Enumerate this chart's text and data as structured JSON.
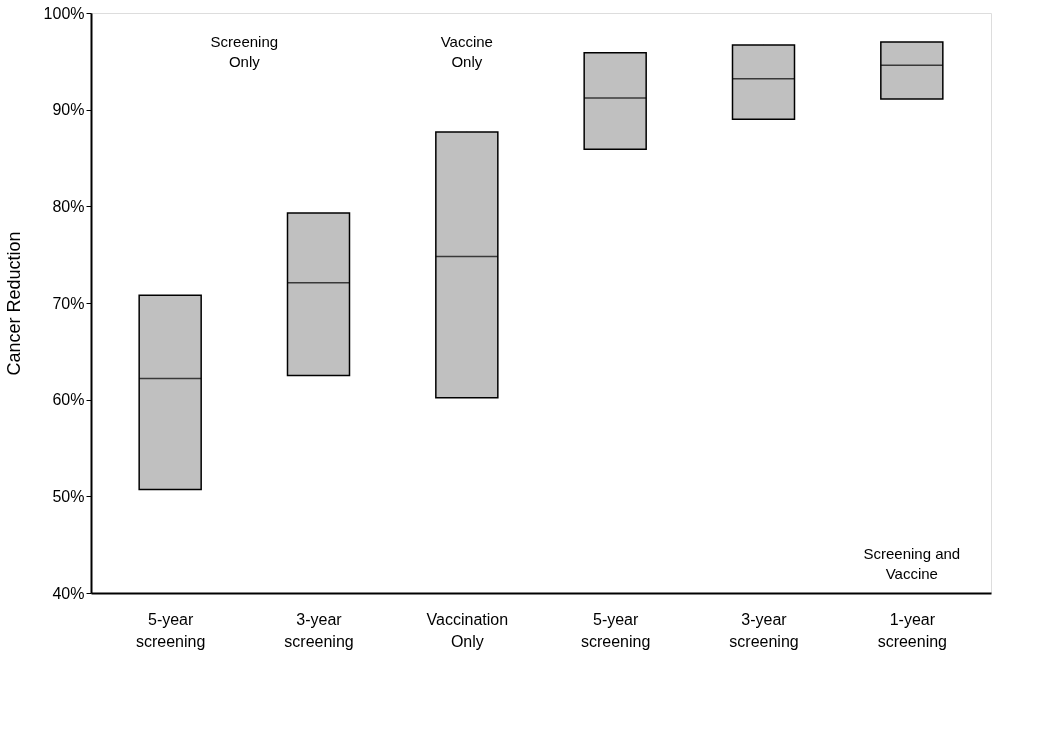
{
  "chart_data": {
    "type": "box",
    "ylabel": "Cancer Reduction",
    "categories": [
      "5-year screening",
      "3-year screening",
      "Vaccination Only",
      "5-year screening",
      "3-year screening",
      "1-year screening"
    ],
    "boxes": [
      {
        "low": 50.7,
        "q1": 50.7,
        "median": 62.2,
        "q3": 70.8,
        "high": 70.8
      },
      {
        "low": 62.5,
        "q1": 62.5,
        "median": 72.1,
        "q3": 79.3,
        "high": 79.3
      },
      {
        "low": 60.2,
        "q1": 60.2,
        "median": 74.8,
        "q3": 87.7,
        "high": 87.7
      },
      {
        "low": 85.9,
        "q1": 85.9,
        "median": 91.2,
        "q3": 95.9,
        "high": 95.9
      },
      {
        "low": 89.0,
        "q1": 89.0,
        "median": 93.2,
        "q3": 96.7,
        "high": 96.7
      },
      {
        "low": 91.1,
        "q1": 91.1,
        "median": 94.6,
        "q3": 97.0,
        "high": 97.0
      }
    ],
    "color": "#c0c0c0",
    "ylim": [
      40,
      100
    ],
    "yticks": [
      {
        "value": 40,
        "label": "40%"
      },
      {
        "value": 50,
        "label": "50%"
      },
      {
        "value": 60,
        "label": "60%"
      },
      {
        "value": 70,
        "label": "70%"
      },
      {
        "value": 80,
        "label": "80%"
      },
      {
        "value": 90,
        "label": "90%"
      },
      {
        "value": 100,
        "label": "100%"
      }
    ],
    "grid": false,
    "annotations": [
      "Screening Only",
      "Vaccine Only",
      "Screening and Vaccine"
    ]
  }
}
